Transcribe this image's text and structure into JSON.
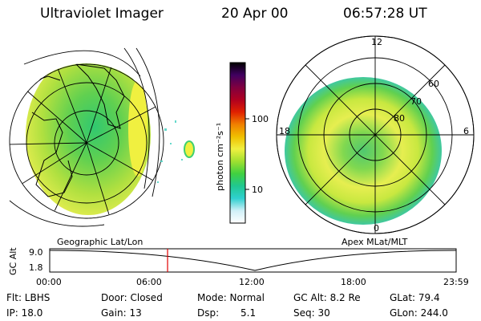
{
  "header": {
    "title": "Ultraviolet Imager",
    "date": "20 Apr 00",
    "time": "06:57:28 UT"
  },
  "panels": {
    "left_label": "Geographic Lat/Lon",
    "right_label": "Apex MLat/MLT"
  },
  "polar": {
    "mlt_labels": [
      "12",
      "18",
      "6",
      "0"
    ],
    "mlat_labels": [
      "60",
      "70",
      "80"
    ]
  },
  "colorbar": {
    "unit_label": "photon cm⁻²s⁻¹",
    "tick_labels": [
      "100",
      "10"
    ],
    "colors": [
      "#ffffff",
      "#d0f0f8",
      "#30d0d0",
      "#20c890",
      "#40d040",
      "#a0e030",
      "#f0f040",
      "#f0c000",
      "#f08000",
      "#e02000",
      "#b00020",
      "#800040",
      "#400060",
      "#000000"
    ]
  },
  "timeline": {
    "axis_label": "GC Alt",
    "y_max_label": "9.0",
    "y_min_label": "1.8",
    "ticks": [
      "00:00",
      "06:00",
      "12:00",
      "18:00",
      "23:59"
    ],
    "current_time_fraction": 0.29,
    "marker_color": "#e00000"
  },
  "info": {
    "filter": "Flt: LBHS",
    "door": "Door: Closed",
    "mode": "Mode: Normal",
    "gc_alt": "GC Alt: 8.2 Re",
    "glat": "GLat: 79.4",
    "ip": "IP: 18.0",
    "gain": "Gain: 13",
    "dsp_label": "Dsp:",
    "dsp_value": "5.1",
    "seq": "Seq: 30",
    "glon": "GLon: 244.0"
  }
}
